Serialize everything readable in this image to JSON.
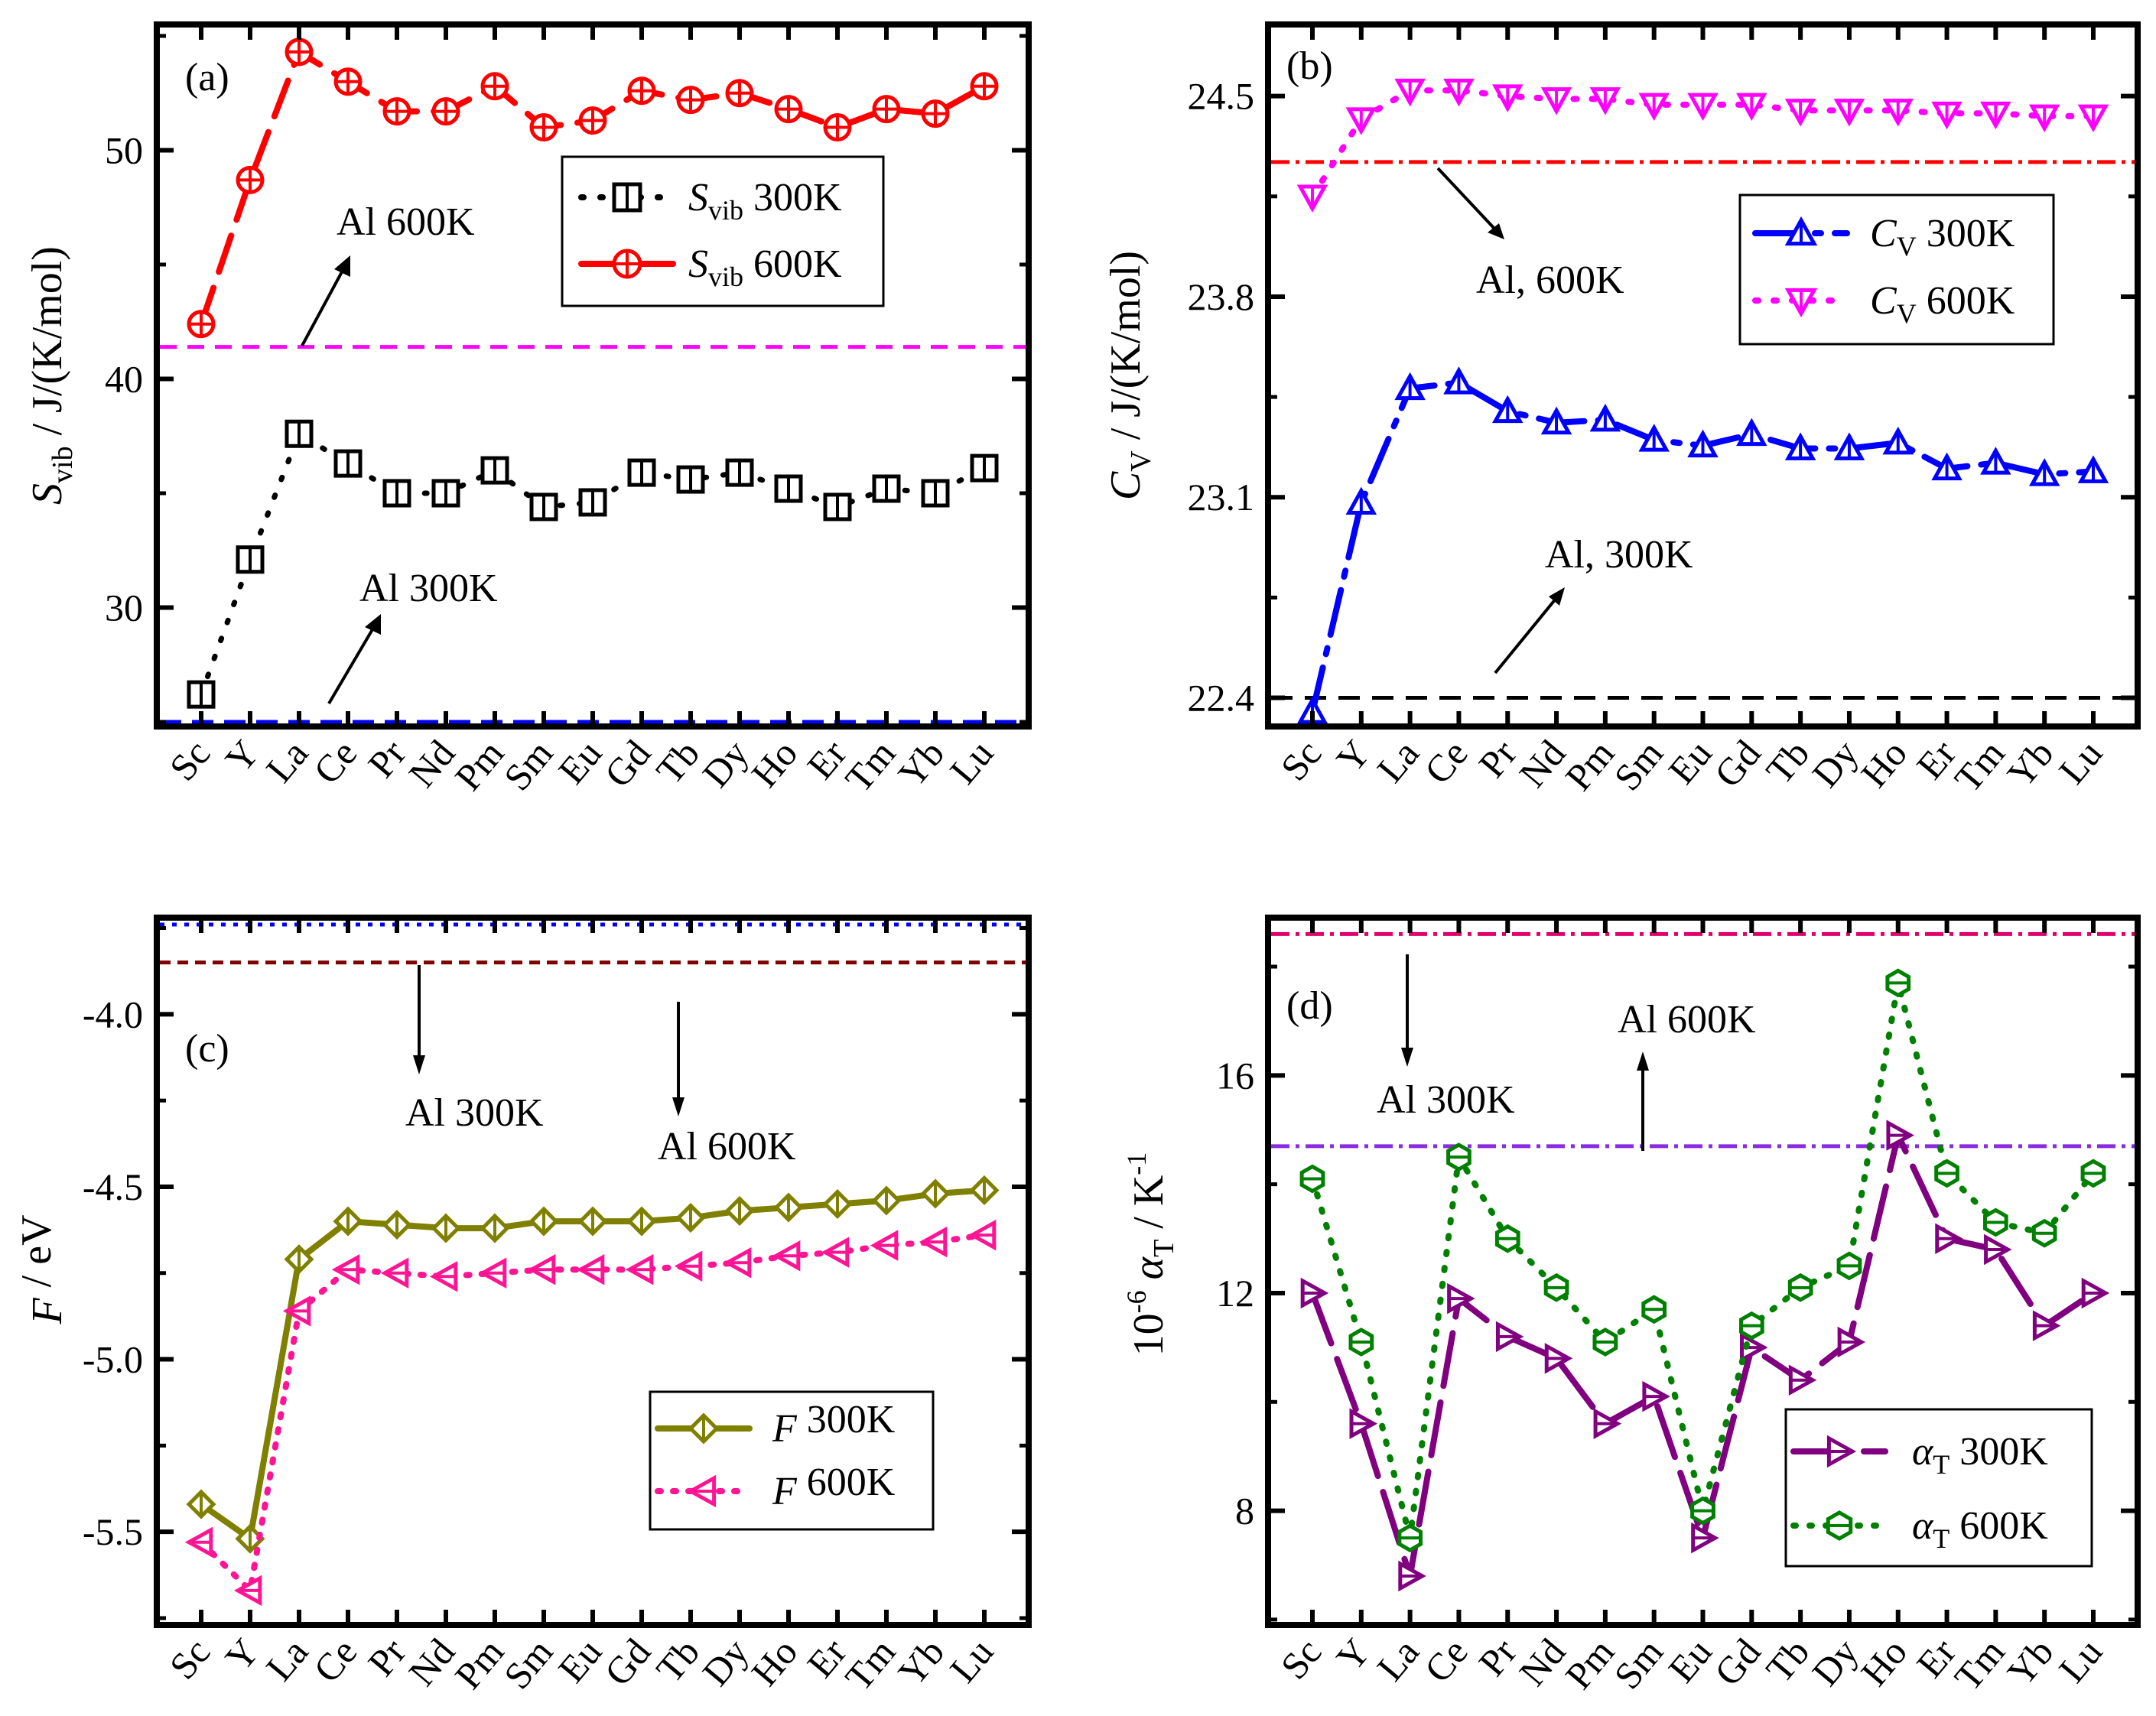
{
  "categories": [
    "Sc",
    "Y",
    "La",
    "Ce",
    "Pr",
    "Nd",
    "Pm",
    "Sm",
    "Eu",
    "Gd",
    "Tb",
    "Dy",
    "Ho",
    "Er",
    "Tm",
    "Yb",
    "Lu"
  ],
  "chart_data": [
    {
      "type": "line",
      "panel_label": "(a)",
      "ylabel_main": "S",
      "ylabel_sub": "vib",
      "ylabel_rest": " / J/(K/mol)",
      "ylim": [
        24.8,
        55.5
      ],
      "yticks": [
        "30",
        "40",
        "50"
      ],
      "series": [
        {
          "name": "S_vib 300K",
          "legend_main": "S",
          "legend_sub": "vib",
          "legend_rest": " 300K",
          "color": "#000000",
          "marker": "square",
          "values": [
            26.2,
            32.1,
            37.6,
            36.3,
            35.0,
            35.0,
            36.0,
            34.4,
            34.6,
            35.9,
            35.6,
            35.9,
            35.2,
            34.4,
            35.2,
            35.0,
            36.1
          ]
        },
        {
          "name": "S_vib 600K",
          "legend_main": "S",
          "legend_sub": "vib",
          "legend_rest": " 600K",
          "color": "#ff0000",
          "marker": "circle",
          "values": [
            42.4,
            48.7,
            54.3,
            53.0,
            51.7,
            51.7,
            52.8,
            51.0,
            51.3,
            52.6,
            52.2,
            52.5,
            51.8,
            51.0,
            51.8,
            51.6,
            52.8
          ]
        }
      ],
      "reference_lines": [
        {
          "label": "Al 600K",
          "value": 41.4,
          "color": "#ff00ff"
        },
        {
          "label": "Al 300K",
          "value": 25.0,
          "color": "#0000ff"
        }
      ]
    },
    {
      "type": "line",
      "panel_label": "(b)",
      "ylabel_main": "C",
      "ylabel_sub": "V",
      "ylabel_rest": " / J/(K/mol)",
      "ylim": [
        22.3,
        24.75
      ],
      "yticks": [
        "22.4",
        "23.1",
        "23.8",
        "24.5"
      ],
      "series": [
        {
          "name": "C_V 300K",
          "legend_main": "C",
          "legend_sub": "V",
          "legend_rest": " 300K",
          "color": "#0000ff",
          "marker": "triangle-up",
          "values": [
            22.35,
            23.08,
            23.48,
            23.5,
            23.4,
            23.36,
            23.37,
            23.3,
            23.28,
            23.32,
            23.27,
            23.27,
            23.29,
            23.2,
            23.22,
            23.18,
            23.19
          ]
        },
        {
          "name": "C_V 600K",
          "legend_main": "C",
          "legend_sub": "V",
          "legend_rest": " 600K",
          "color": "#ff00ff",
          "marker": "triangle-down",
          "values": [
            24.15,
            24.42,
            24.52,
            24.52,
            24.5,
            24.49,
            24.49,
            24.47,
            24.47,
            24.47,
            24.45,
            24.45,
            24.45,
            24.44,
            24.44,
            24.43,
            24.43
          ]
        }
      ],
      "reference_lines": [
        {
          "label": "Al, 600K",
          "value": 24.27,
          "color": "#ff0000"
        },
        {
          "label": "Al, 300K",
          "value": 22.4,
          "color": "#000000"
        }
      ]
    },
    {
      "type": "line",
      "panel_label": "(c)",
      "ylabel_main": "F",
      "ylabel_sub": "",
      "ylabel_rest": " / eV",
      "ylim": [
        -5.77,
        -3.72
      ],
      "yticks": [
        "-5.5",
        "-5.0",
        "-4.5",
        "-4.0"
      ],
      "series": [
        {
          "name": "F 300K",
          "legend_main": "F",
          "legend_sub": "",
          "legend_rest": " 300K",
          "color": "#808000",
          "marker": "diamond",
          "values": [
            -5.42,
            -5.52,
            -4.71,
            -4.6,
            -4.61,
            -4.62,
            -4.62,
            -4.6,
            -4.6,
            -4.6,
            -4.59,
            -4.57,
            -4.56,
            -4.55,
            -4.54,
            -4.52,
            -4.51
          ]
        },
        {
          "name": "F 600K",
          "legend_main": "F",
          "legend_sub": "",
          "legend_rest": " 600K",
          "color": "#ff1493",
          "marker": "triangle-left",
          "values": [
            -5.53,
            -5.67,
            -4.86,
            -4.74,
            -4.75,
            -4.76,
            -4.75,
            -4.74,
            -4.74,
            -4.74,
            -4.73,
            -4.72,
            -4.7,
            -4.69,
            -4.67,
            -4.66,
            -4.64
          ]
        }
      ],
      "reference_lines": [
        {
          "label": "Al 300K",
          "value": -3.74,
          "color": "#0000ff"
        },
        {
          "label": "Al 600K",
          "value": -3.85,
          "color": "#800000"
        }
      ]
    },
    {
      "type": "line",
      "panel_label": "(d)",
      "ylabel_main": "10",
      "ylabel_sub": "T",
      "ylabel_rest": " / K",
      "ylim": [
        5.9,
        18.9
      ],
      "yticks": [
        "8",
        "12",
        "16"
      ],
      "series": [
        {
          "name": "alpha_T 300K",
          "legend_main": "α",
          "legend_sub": "T",
          "legend_rest": " 300K",
          "color": "#800080",
          "marker": "triangle-right",
          "values": [
            12.0,
            9.6,
            6.8,
            11.9,
            11.2,
            10.8,
            9.6,
            10.1,
            7.5,
            11.0,
            10.4,
            11.1,
            14.9,
            13.0,
            12.8,
            11.4,
            12.0
          ]
        },
        {
          "name": "alpha_T 600K",
          "legend_main": "α",
          "legend_sub": "T",
          "legend_rest": " 600K",
          "color": "#008000",
          "marker": "hexagon",
          "values": [
            14.1,
            11.1,
            7.5,
            14.5,
            13.0,
            12.1,
            11.1,
            11.7,
            8.0,
            11.4,
            12.1,
            12.5,
            17.7,
            14.2,
            13.3,
            13.1,
            14.2
          ]
        }
      ],
      "reference_lines": [
        {
          "label": "Al 300K",
          "value": 18.6,
          "color": "#e0006b"
        },
        {
          "label": "Al 600K",
          "value": 14.7,
          "color": "#8a2be2"
        }
      ]
    }
  ]
}
